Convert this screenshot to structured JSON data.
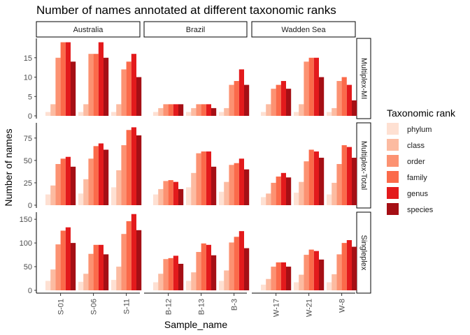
{
  "chart_data": {
    "type": "bar",
    "title": "Number of names annotated at different taxonomic ranks",
    "xlabel": "Sample_name",
    "ylabel": "Number of names",
    "legend": {
      "title": "Taxonomic rank",
      "placement": "right",
      "entries": [
        "phylum",
        "class",
        "order",
        "family",
        "genus",
        "species"
      ]
    },
    "series_colors": [
      "#FEE0D2",
      "#FCBBA1",
      "#FC9272",
      "#FB6A4A",
      "#E31A1C",
      "#A50F15"
    ],
    "grid": false,
    "columns": [
      {
        "label": "Australia",
        "samples": [
          "S-01",
          "S-06",
          "S-11"
        ]
      },
      {
        "label": "Brazil",
        "samples": [
          "B-12",
          "B-13",
          "B-3"
        ]
      },
      {
        "label": "Wadden Sea",
        "samples": [
          "W-17",
          "W-21",
          "W-8"
        ]
      }
    ],
    "rows": [
      {
        "label": "Multiplex-MI",
        "ylim": [
          0,
          20
        ],
        "ticks": [
          0,
          5,
          10,
          15
        ],
        "values": {
          "S-01": [
            1,
            3,
            15,
            19,
            19,
            14
          ],
          "S-06": [
            1,
            3,
            16,
            16,
            19,
            15
          ],
          "S-11": [
            1,
            3,
            12,
            14,
            16,
            10
          ],
          "B-12": [
            1,
            2,
            3,
            3,
            3,
            3
          ],
          "B-13": [
            1,
            2,
            3,
            3,
            3,
            2
          ],
          "B-3": [
            1,
            2,
            8,
            9,
            12,
            8
          ],
          "W-17": [
            1,
            3,
            7,
            8,
            9,
            7
          ],
          "W-21": [
            1,
            3,
            14,
            15,
            15,
            10
          ],
          "W-8": [
            1,
            2,
            9,
            10,
            8,
            4
          ]
        }
      },
      {
        "label": "Multiplex-Total",
        "ylim": [
          0,
          92
        ],
        "ticks": [
          0,
          25,
          50,
          75
        ],
        "values": {
          "S-01": [
            12,
            22,
            46,
            52,
            54,
            43
          ],
          "S-06": [
            13,
            29,
            52,
            66,
            69,
            62
          ],
          "S-11": [
            20,
            39,
            67,
            84,
            87,
            78
          ],
          "B-12": [
            12,
            18,
            27,
            28,
            26,
            18
          ],
          "B-13": [
            20,
            36,
            58,
            60,
            60,
            43
          ],
          "B-3": [
            15,
            26,
            45,
            47,
            52,
            40
          ],
          "W-17": [
            9,
            13,
            25,
            32,
            36,
            31
          ],
          "W-21": [
            14,
            26,
            49,
            62,
            60,
            53
          ],
          "W-8": [
            12,
            25,
            46,
            67,
            65,
            53
          ]
        }
      },
      {
        "label": "Singleplex",
        "ylim": [
          0,
          165
        ],
        "ticks": [
          0,
          50,
          100,
          150
        ],
        "values": {
          "S-01": [
            20,
            44,
            97,
            126,
            133,
            100
          ],
          "S-06": [
            18,
            35,
            77,
            96,
            96,
            76
          ],
          "S-11": [
            22,
            50,
            119,
            146,
            161,
            127
          ],
          "B-12": [
            17,
            35,
            66,
            68,
            73,
            56
          ],
          "B-13": [
            20,
            38,
            81,
            99,
            96,
            74
          ],
          "B-3": [
            20,
            42,
            101,
            113,
            125,
            89
          ],
          "W-17": [
            12,
            24,
            50,
            59,
            59,
            50
          ],
          "W-21": [
            17,
            33,
            75,
            86,
            83,
            65
          ],
          "W-8": [
            17,
            34,
            76,
            100,
            106,
            92
          ]
        }
      }
    ]
  }
}
